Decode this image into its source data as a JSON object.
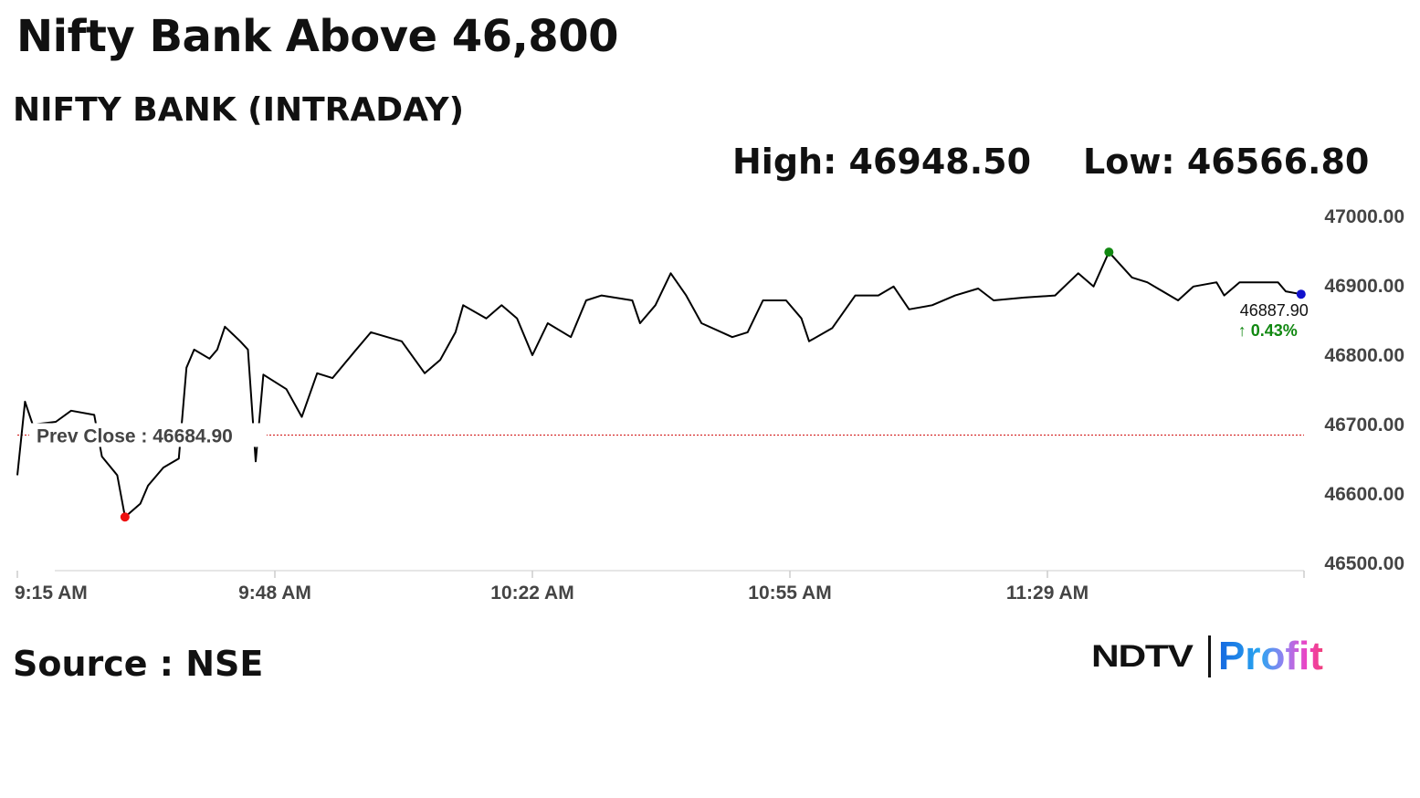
{
  "headline": "Nifty Bank Above 46,800",
  "subtitle": "NIFTY BANK (INTRADAY)",
  "high_label": "High: 46948.50",
  "low_label": "Low: 46566.80",
  "source": "Source : NSE",
  "logo": {
    "left": "NDTV",
    "right": "Profit"
  },
  "chart_data": {
    "type": "line",
    "title": "NIFTY BANK (INTRADAY)",
    "ylim": [
      46500,
      47000
    ],
    "yticks": [
      "46500.00",
      "46600.00",
      "46700.00",
      "46800.00",
      "46900.00",
      "47000.00"
    ],
    "xticks": [
      "9:15 AM",
      "9:48 AM",
      "10:22 AM",
      "10:55 AM",
      "11:29 AM"
    ],
    "xlim": [
      "9:15",
      "12:02"
    ],
    "grid": false,
    "line_color": "#000000",
    "prev_close": {
      "value": 46684.9,
      "label": "Prev Close : 46684.90",
      "color": "#d01010"
    },
    "high_point": {
      "time": "11:37",
      "value": 46948.5,
      "color": "#118811"
    },
    "low_point": {
      "time": "9:29",
      "value": 46566.8,
      "color": "#ee1111"
    },
    "last_point": {
      "time": "12:02",
      "value": 46887.9,
      "label": "46887.90",
      "change": "0.43%",
      "change_color": "#118811",
      "color": "#1111cc"
    },
    "x": [
      "9:15",
      "9:16",
      "9:17",
      "9:20",
      "9:22",
      "9:25",
      "9:26",
      "9:28",
      "9:29",
      "9:31",
      "9:32",
      "9:34",
      "9:36",
      "9:37",
      "9:38",
      "9:40",
      "9:41",
      "9:42",
      "9:44",
      "9:45",
      "9:46",
      "9:47",
      "9:50",
      "9:52",
      "9:54",
      "9:56",
      "9:59",
      "10:01",
      "10:05",
      "10:08",
      "10:10",
      "10:12",
      "10:13",
      "10:16",
      "10:18",
      "10:20",
      "10:22",
      "10:24",
      "10:27",
      "10:29",
      "10:31",
      "10:35",
      "10:36",
      "10:38",
      "10:40",
      "10:42",
      "10:44",
      "10:48",
      "10:50",
      "10:52",
      "10:55",
      "10:57",
      "10:58",
      "11:01",
      "11:04",
      "11:07",
      "11:09",
      "11:11",
      "11:14",
      "11:17",
      "11:20",
      "11:22",
      "11:26",
      "11:30",
      "11:33",
      "11:35",
      "11:37",
      "11:40",
      "11:42",
      "11:46",
      "11:48",
      "11:51",
      "11:52",
      "11:54",
      "11:59",
      "12:00",
      "12:02"
    ],
    "values": [
      46627,
      46733,
      46700,
      46704,
      46720,
      46714,
      46654,
      46627,
      46566.8,
      46586,
      46612,
      46638,
      46651,
      46782,
      46808,
      46795,
      46808,
      46841,
      46820,
      46808,
      46647,
      46772,
      46751,
      46711,
      46774,
      46767,
      46807,
      46833,
      46820,
      46774,
      46793,
      46833,
      46872,
      46853,
      46872,
      46853,
      46800,
      46846,
      46826,
      46879,
      46886,
      46879,
      46846,
      46872,
      46918,
      46886,
      46846,
      46826,
      46833,
      46879,
      46879,
      46853,
      46820,
      46839,
      46886,
      46886,
      46899,
      46866,
      46872,
      46886,
      46896,
      46879,
      46883,
      46886,
      46918,
      46899,
      46948.5,
      46912,
      46905,
      46879,
      46899,
      46905,
      46886,
      46905,
      46905,
      46892,
      46887.9
    ]
  }
}
